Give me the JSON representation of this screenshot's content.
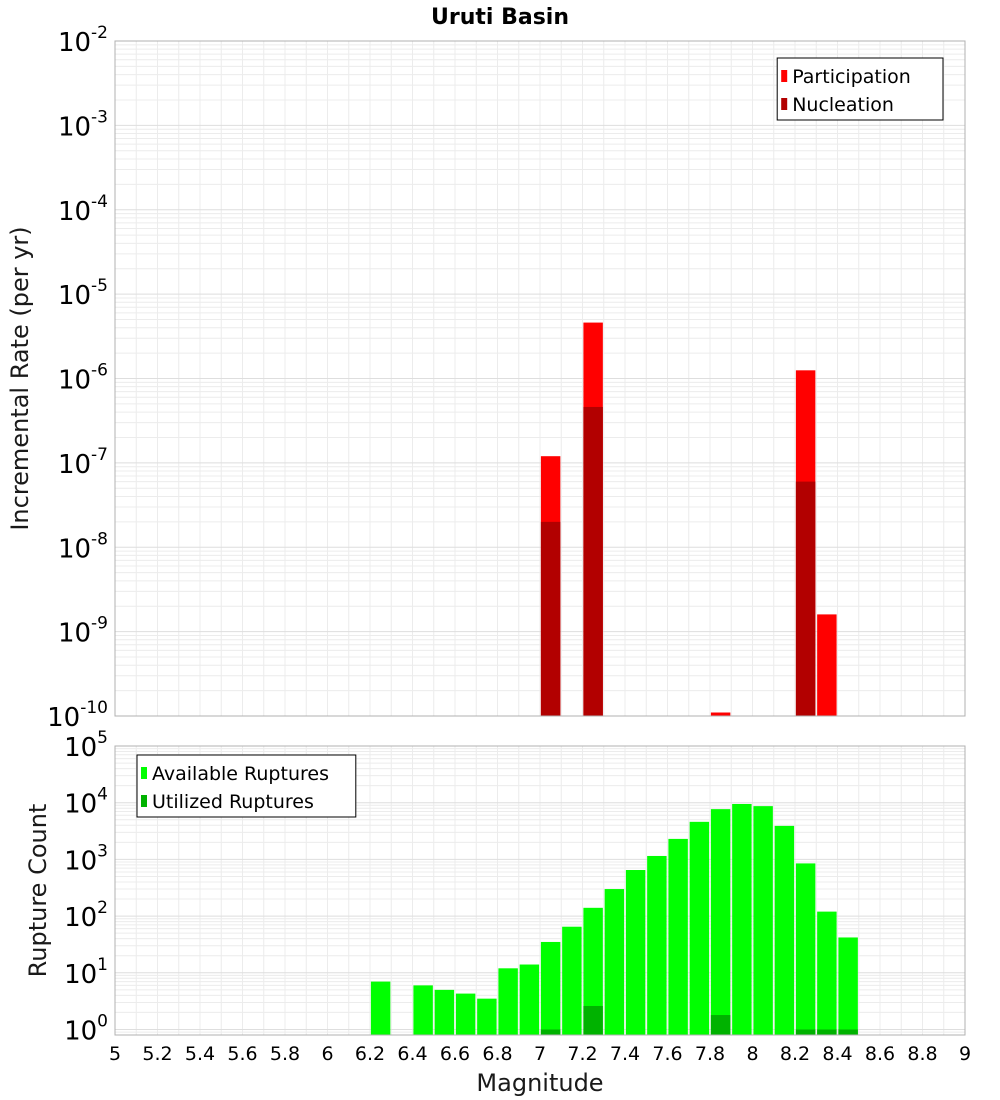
{
  "chart_data": [
    {
      "type": "bar",
      "title": "Uruti Basin",
      "xlabel": "",
      "ylabel": "Incremental Rate (per yr)",
      "xlim": [
        5,
        9
      ],
      "ylim": [
        1e-10,
        0.01
      ],
      "yscale": "log",
      "yticks": [
        {
          "base": "10",
          "exp": "-10",
          "value": 1e-10
        },
        {
          "base": "10",
          "exp": "-9",
          "value": 1e-09
        },
        {
          "base": "10",
          "exp": "-8",
          "value": 1e-08
        },
        {
          "base": "10",
          "exp": "-7",
          "value": 1e-07
        },
        {
          "base": "10",
          "exp": "-6",
          "value": 1e-06
        },
        {
          "base": "10",
          "exp": "-5",
          "value": 1e-05
        },
        {
          "base": "10",
          "exp": "-4",
          "value": 0.0001
        },
        {
          "base": "10",
          "exp": "-3",
          "value": 0.001
        },
        {
          "base": "10",
          "exp": "-2",
          "value": 0.01
        }
      ],
      "grid": true,
      "legend_position": "top-right",
      "series": [
        {
          "name": "Participation",
          "color": "#ff0000",
          "points": [
            {
              "x": 7.05,
              "y": 1.2e-07
            },
            {
              "x": 7.25,
              "y": 4.6e-06
            },
            {
              "x": 7.85,
              "y": 1.1e-10
            },
            {
              "x": 8.25,
              "y": 1.25e-06
            },
            {
              "x": 8.35,
              "y": 1.6e-09
            }
          ]
        },
        {
          "name": "Nucleation",
          "color": "#b20000",
          "points": [
            {
              "x": 7.05,
              "y": 2e-08
            },
            {
              "x": 7.25,
              "y": 4.6e-07
            },
            {
              "x": 8.25,
              "y": 6e-08
            }
          ]
        }
      ]
    },
    {
      "type": "bar",
      "title": "",
      "xlabel": "Magnitude",
      "ylabel": "Rupture Count",
      "xlim": [
        5,
        9
      ],
      "ylim": [
        0.8,
        100000
      ],
      "yscale": "log",
      "yticks": [
        {
          "base": "10",
          "exp": "0",
          "value": 1
        },
        {
          "base": "10",
          "exp": "1",
          "value": 10
        },
        {
          "base": "10",
          "exp": "2",
          "value": 100
        },
        {
          "base": "10",
          "exp": "3",
          "value": 1000
        },
        {
          "base": "10",
          "exp": "4",
          "value": 10000
        },
        {
          "base": "10",
          "exp": "5",
          "value": 100000
        }
      ],
      "xticks": [
        "5",
        "5.2",
        "5.4",
        "5.6",
        "5.8",
        "6",
        "6.2",
        "6.4",
        "6.6",
        "6.8",
        "7",
        "7.2",
        "7.4",
        "7.6",
        "7.8",
        "8",
        "8.2",
        "8.4",
        "8.6",
        "8.8",
        "9"
      ],
      "grid": true,
      "legend_position": "top-left",
      "series": [
        {
          "name": "Available Ruptures",
          "color": "#00ff00",
          "points": [
            {
              "x": 6.25,
              "y": 7
            },
            {
              "x": 6.45,
              "y": 6
            },
            {
              "x": 6.55,
              "y": 5
            },
            {
              "x": 6.65,
              "y": 4.3
            },
            {
              "x": 6.75,
              "y": 3.5
            },
            {
              "x": 6.85,
              "y": 12
            },
            {
              "x": 6.95,
              "y": 14
            },
            {
              "x": 7.05,
              "y": 35
            },
            {
              "x": 7.15,
              "y": 65
            },
            {
              "x": 7.25,
              "y": 140
            },
            {
              "x": 7.35,
              "y": 300
            },
            {
              "x": 7.45,
              "y": 650
            },
            {
              "x": 7.55,
              "y": 1150
            },
            {
              "x": 7.65,
              "y": 2300
            },
            {
              "x": 7.75,
              "y": 4600
            },
            {
              "x": 7.85,
              "y": 7700
            },
            {
              "x": 7.95,
              "y": 9500
            },
            {
              "x": 8.05,
              "y": 8700
            },
            {
              "x": 8.15,
              "y": 3900
            },
            {
              "x": 8.25,
              "y": 850
            },
            {
              "x": 8.35,
              "y": 120
            },
            {
              "x": 8.45,
              "y": 42
            }
          ]
        },
        {
          "name": "Utilized Ruptures",
          "color": "#00b200",
          "points": [
            {
              "x": 7.05,
              "y": 1
            },
            {
              "x": 7.25,
              "y": 2.6
            },
            {
              "x": 7.85,
              "y": 1.8
            },
            {
              "x": 8.25,
              "y": 1
            },
            {
              "x": 8.35,
              "y": 1
            },
            {
              "x": 8.45,
              "y": 1
            }
          ]
        }
      ]
    }
  ]
}
